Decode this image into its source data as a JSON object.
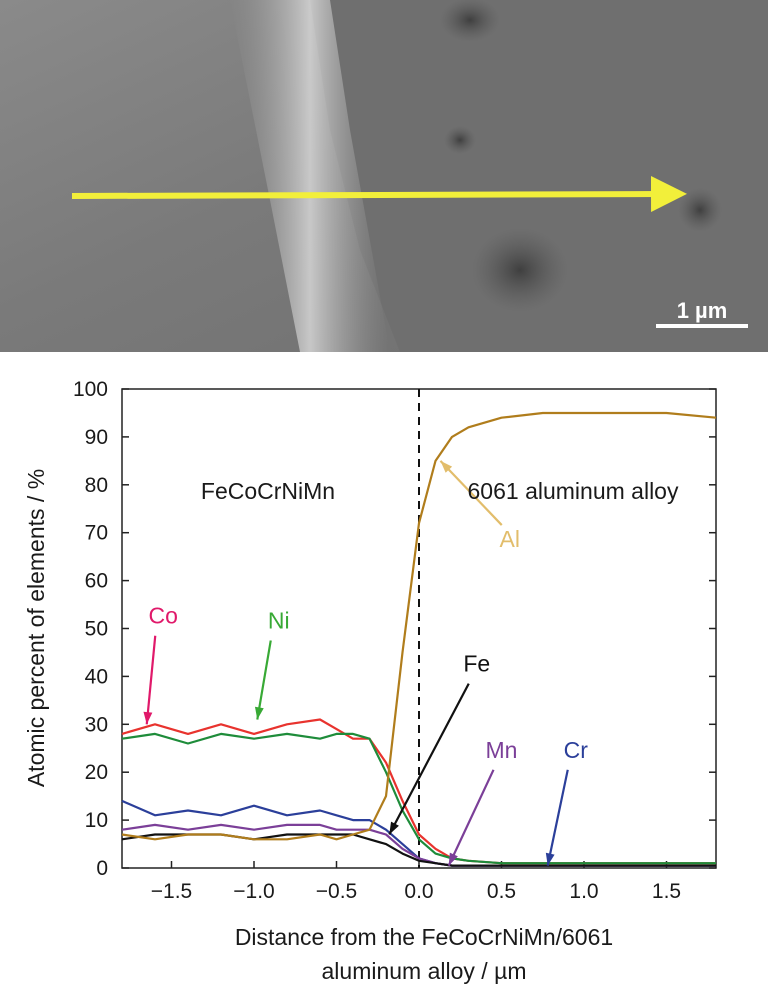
{
  "micrograph": {
    "scale_bar_label": "1 µm",
    "arrow_color": "#f2ef3a"
  },
  "chart_data": {
    "type": "line",
    "ylabel": "Atomic percent of elements / %",
    "xlabel_line1": "Distance from the FeCoCrNiMn/6061",
    "xlabel_line2": "aluminum alloy / µm",
    "xlim": [
      -1.8,
      1.8
    ],
    "ylim": [
      0,
      100
    ],
    "x_ticks": [
      -1.5,
      -1.0,
      -0.5,
      0.0,
      0.5,
      1.0,
      1.5
    ],
    "x_tick_labels": [
      "−1.5",
      "−1.0",
      "−0.5",
      "0.0",
      "0.5",
      "1.0",
      "1.5"
    ],
    "y_ticks": [
      0,
      10,
      20,
      30,
      40,
      50,
      60,
      70,
      80,
      90,
      100
    ],
    "y_tick_labels": [
      "0",
      "10",
      "20",
      "30",
      "40",
      "50",
      "60",
      "70",
      "80",
      "90",
      "100"
    ],
    "interface_x": 0.0,
    "regions": {
      "left": "FeCoCrNiMn",
      "right": "6061 aluminum alloy"
    },
    "x": [
      -1.8,
      -1.6,
      -1.4,
      -1.2,
      -1.0,
      -0.8,
      -0.6,
      -0.5,
      -0.4,
      -0.3,
      -0.2,
      -0.1,
      0.0,
      0.1,
      0.2,
      0.3,
      0.5,
      0.75,
      1.0,
      1.25,
      1.5,
      1.8
    ],
    "series": [
      {
        "name": "Co",
        "color": "#e8332e",
        "values": [
          28,
          30,
          28,
          30,
          28,
          30,
          31,
          29,
          27,
          27,
          22,
          14,
          7,
          4,
          2,
          1.5,
          1,
          1,
          1,
          1,
          1,
          1
        ]
      },
      {
        "name": "Ni",
        "color": "#1e8c3a",
        "values": [
          27,
          28,
          26,
          28,
          27,
          28,
          27,
          28,
          28,
          27,
          20,
          12,
          6,
          3,
          2,
          1.5,
          1,
          1,
          1,
          1,
          1,
          1
        ]
      },
      {
        "name": "Cr",
        "color": "#2b3f9a",
        "values": [
          14,
          11,
          12,
          11,
          13,
          11,
          12,
          11,
          10,
          10,
          8,
          5,
          2,
          1,
          0.5,
          0.5,
          0.5,
          0.5,
          0.5,
          0.5,
          0.5,
          0.5
        ]
      },
      {
        "name": "Mn",
        "color": "#7b3f98",
        "values": [
          8,
          9,
          8,
          9,
          8,
          9,
          9,
          8,
          8,
          8,
          7,
          4,
          2,
          1,
          0.5,
          0.5,
          0.5,
          0.5,
          0.5,
          0.5,
          0.5,
          0.5
        ]
      },
      {
        "name": "Fe",
        "color": "#111111",
        "values": [
          6,
          7,
          7,
          7,
          6,
          7,
          7,
          7,
          7,
          6,
          5,
          3,
          1.5,
          1,
          0.5,
          0.5,
          0.5,
          0.5,
          0.5,
          0.5,
          0.5,
          0.5
        ]
      },
      {
        "name": "Al",
        "color": "#b07d1c",
        "values": [
          7,
          6,
          7,
          7,
          6,
          6,
          7,
          6,
          7,
          8,
          15,
          45,
          72,
          85,
          90,
          92,
          94,
          95,
          95,
          95,
          95,
          94
        ]
      }
    ],
    "annotations": [
      {
        "label": "Co",
        "color": "#e0196a",
        "text_x": -1.55,
        "text_y": 51,
        "tip_x": -1.65,
        "tip_y": 30
      },
      {
        "label": "Ni",
        "color": "#38a935",
        "text_x": -0.85,
        "text_y": 50,
        "tip_x": -0.98,
        "tip_y": 31
      },
      {
        "label": "Fe",
        "color": "#111111",
        "text_x": 0.35,
        "text_y": 41,
        "tip_x": -0.18,
        "tip_y": 7
      },
      {
        "label": "Mn",
        "color": "#7b3f98",
        "text_x": 0.5,
        "text_y": 23,
        "tip_x": 0.18,
        "tip_y": 0.5
      },
      {
        "label": "Cr",
        "color": "#2b3f9a",
        "text_x": 0.95,
        "text_y": 23,
        "tip_x": 0.78,
        "tip_y": 0.5
      },
      {
        "label": "Al",
        "color": "#e2bd6b",
        "text_x": 0.55,
        "text_y": 67,
        "tip_x": 0.13,
        "tip_y": 85
      }
    ]
  }
}
